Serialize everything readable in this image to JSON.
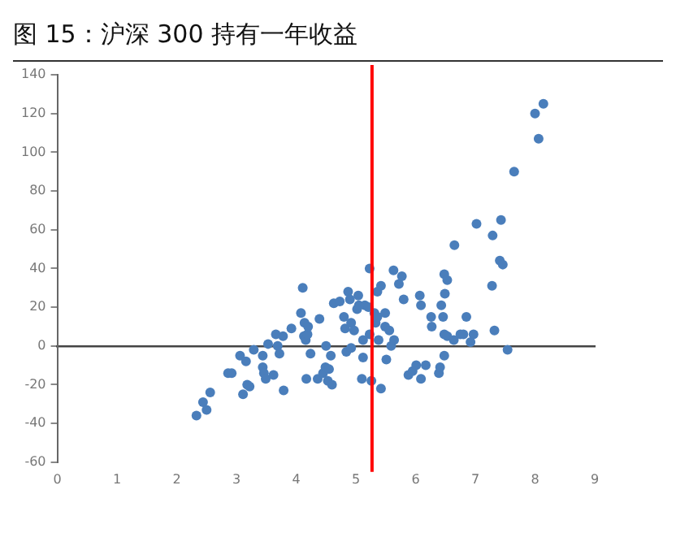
{
  "chart_data": {
    "type": "scatter",
    "title": "图 15：沪深 300 持有一年收益",
    "xlim": [
      0,
      9
    ],
    "xticks": [
      0,
      1,
      2,
      3,
      4,
      5,
      6,
      7,
      8,
      9
    ],
    "ylim": [
      -60,
      140
    ],
    "yticks": [
      -60,
      -40,
      -20,
      0,
      20,
      40,
      60,
      80,
      100,
      120,
      140
    ],
    "legend": false,
    "marker": "circle",
    "ref_lines": [
      {
        "axis": "x",
        "value": 5.27,
        "color": "#ff0000"
      }
    ],
    "series": [
      {
        "color": "#4a7ebb",
        "x": [
          2.33,
          2.44,
          2.5,
          2.56,
          2.86,
          2.92,
          3.06,
          3.11,
          3.16,
          3.18,
          3.22,
          3.29,
          3.44,
          3.44,
          3.46,
          3.49,
          3.53,
          3.62,
          3.66,
          3.69,
          3.72,
          3.78,
          3.79,
          3.92,
          4.08,
          4.11,
          4.13,
          4.14,
          4.16,
          4.17,
          4.19,
          4.2,
          4.24,
          4.39,
          4.36,
          4.45,
          4.49,
          4.55,
          4.53,
          4.5,
          4.58,
          4.6,
          4.63,
          4.73,
          4.8,
          4.82,
          4.84,
          4.87,
          4.9,
          4.92,
          4.92,
          4.97,
          5.02,
          5.04,
          5.05,
          5.12,
          5.12,
          5.1,
          5.15,
          5.23,
          5.21,
          5.23,
          5.26,
          5.31,
          5.33,
          5.36,
          5.36,
          5.38,
          5.42,
          5.42,
          5.49,
          5.49,
          5.51,
          5.56,
          5.59,
          5.63,
          5.64,
          5.72,
          5.77,
          5.8,
          5.88,
          5.95,
          6.01,
          6.09,
          6.07,
          6.09,
          6.17,
          6.26,
          6.27,
          6.39,
          6.41,
          6.43,
          6.46,
          6.48,
          6.49,
          6.48,
          6.48,
          6.53,
          6.53,
          6.65,
          6.64,
          6.75,
          6.8,
          6.85,
          6.92,
          6.97,
          7.02,
          7.28,
          7.29,
          7.32,
          7.41,
          7.43,
          7.46,
          7.54,
          7.65,
          8.0,
          8.06,
          8.14
        ],
        "values": [
          -36,
          -29,
          -33,
          -24,
          -14,
          -14,
          -5,
          -25,
          -8,
          -20,
          -21,
          -2,
          -5,
          -11,
          -14,
          -17,
          1,
          -15,
          6,
          0,
          -4,
          5,
          -23,
          9,
          17,
          30,
          5,
          12,
          3,
          -17,
          6,
          10,
          -4,
          14,
          -17,
          -14,
          -11,
          -12,
          -18,
          0,
          -5,
          -20,
          22,
          23,
          15,
          9,
          -3,
          28,
          24,
          12,
          -1,
          8,
          19,
          26,
          21,
          3,
          -6,
          -17,
          21,
          40,
          20,
          6,
          -18,
          17,
          12,
          15,
          28,
          3,
          31,
          -22,
          17,
          10,
          -7,
          8,
          0,
          39,
          3,
          32,
          36,
          24,
          -15,
          -13,
          -10,
          -17,
          26,
          21,
          -10,
          15,
          10,
          -14,
          -11,
          21,
          15,
          6,
          27,
          -5,
          37,
          34,
          5,
          52,
          3,
          6,
          6,
          15,
          2,
          6,
          63,
          31,
          57,
          8,
          44,
          65,
          42,
          -2,
          90,
          120,
          107,
          125
        ]
      }
    ]
  }
}
